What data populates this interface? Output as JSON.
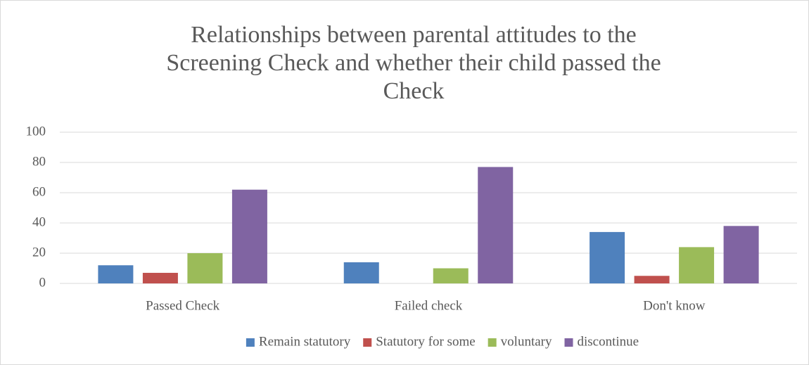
{
  "chart_data": {
    "type": "bar",
    "title": [
      "Relationships between parental attitudes to the",
      "Screening Check and whether their child passed the",
      "Check"
    ],
    "categories": [
      "Passed Check",
      "Failed check",
      "Don't know"
    ],
    "series": [
      {
        "name": "Remain statutory",
        "color": "#4f81bd",
        "values": [
          12,
          14,
          34
        ]
      },
      {
        "name": "Statutory for some",
        "color": "#c0504d",
        "values": [
          7,
          0,
          5
        ]
      },
      {
        "name": "voluntary",
        "color": "#9bbb59",
        "values": [
          20,
          10,
          24
        ]
      },
      {
        "name": "discontinue",
        "color": "#8064a2",
        "values": [
          62,
          77,
          38
        ]
      }
    ],
    "ylim": [
      0,
      100
    ],
    "yticks": [
      0,
      20,
      40,
      60,
      80,
      100
    ],
    "grid": true,
    "legend": "bottom"
  }
}
